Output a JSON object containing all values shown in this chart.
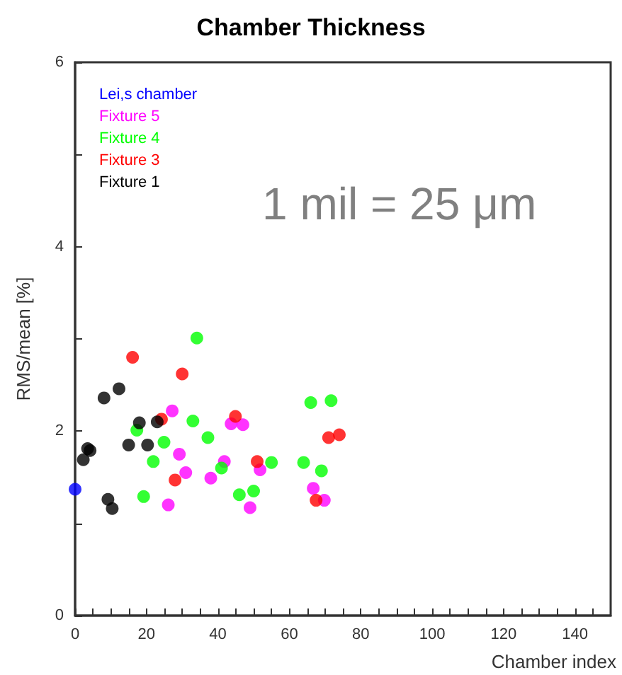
{
  "chart_data": {
    "type": "scatter",
    "title": "Chamber Thickness",
    "xlabel": "Chamber index",
    "ylabel": "RMS/mean [%]",
    "annotations": [
      "1 mil = 25 μm"
    ],
    "xlim": [
      0,
      150
    ],
    "xticks": [
      0,
      {
        "value": 5,
        "label": null
      },
      {
        "value": 10,
        "label": null
      },
      {
        "value": 15,
        "label": null
      },
      20,
      {
        "value": 25,
        "label": null
      },
      {
        "value": 30,
        "label": null
      },
      {
        "value": 35,
        "label": null
      },
      40,
      {
        "value": 45,
        "label": null
      },
      {
        "value": 50,
        "label": null
      },
      {
        "value": 55,
        "label": null
      },
      60,
      {
        "value": 65,
        "label": null
      },
      {
        "value": 70,
        "label": null
      },
      {
        "value": 75,
        "label": null
      },
      80,
      {
        "value": 85,
        "label": null
      },
      {
        "value": 90,
        "label": null
      },
      {
        "value": 95,
        "label": null
      },
      100,
      {
        "value": 105,
        "label": null
      },
      {
        "value": 110,
        "label": null
      },
      {
        "value": 115,
        "label": null
      },
      120,
      {
        "value": 125,
        "label": null
      },
      {
        "value": 130,
        "label": null
      },
      {
        "value": 135,
        "label": null
      },
      140,
      {
        "value": 145,
        "label": null
      }
    ],
    "ylim": [
      0,
      6
    ],
    "yticks": [
      0,
      {
        "value": 1,
        "label": null
      },
      2,
      {
        "value": 3,
        "label": null
      },
      4,
      {
        "value": 5,
        "label": null
      },
      6
    ],
    "grid": false,
    "legend": "top left",
    "marker": "circle",
    "series": [
      {
        "name": "Lei,s chamber",
        "color": "#0000ff",
        "x": [
          0
        ],
        "values": [
          1.37
        ]
      },
      {
        "name": "Fixture 5",
        "color": "#ff00ff",
        "x": [
          27.2,
          29.2,
          31,
          26.1,
          38,
          41.8,
          43.7,
          47,
          49,
          51.8,
          66.7,
          69.8
        ],
        "values": [
          2.22,
          1.75,
          1.55,
          1.2,
          1.49,
          1.67,
          2.08,
          2.07,
          1.17,
          1.58,
          1.38,
          1.25
        ]
      },
      {
        "name": "Fixture 4",
        "color": "#00ff00",
        "x": [
          34.1,
          17.3,
          33,
          37.2,
          24.9,
          21.9,
          41,
          19.2,
          46,
          50,
          55,
          64,
          69,
          66,
          71.7
        ],
        "values": [
          3.01,
          2.01,
          2.11,
          1.93,
          1.88,
          1.67,
          1.6,
          1.29,
          1.31,
          1.35,
          1.66,
          1.66,
          1.57,
          2.31,
          2.33
        ]
      },
      {
        "name": "Fixture 3",
        "color": "#ff0000",
        "x": [
          16.1,
          30,
          24.2,
          28,
          44.9,
          51,
          71,
          74,
          67.5
        ],
        "values": [
          2.8,
          2.62,
          2.13,
          1.47,
          2.16,
          1.67,
          1.93,
          1.96,
          1.25
        ]
      },
      {
        "name": "Fixture 1",
        "color": "#000000",
        "x": [
          2.3,
          3.5,
          4.2,
          8.1,
          12.3,
          9.2,
          10.4,
          15,
          18,
          20.3,
          23
        ],
        "values": [
          1.69,
          1.81,
          1.79,
          2.36,
          2.46,
          1.26,
          1.16,
          1.85,
          2.09,
          1.85,
          2.1
        ]
      }
    ]
  }
}
